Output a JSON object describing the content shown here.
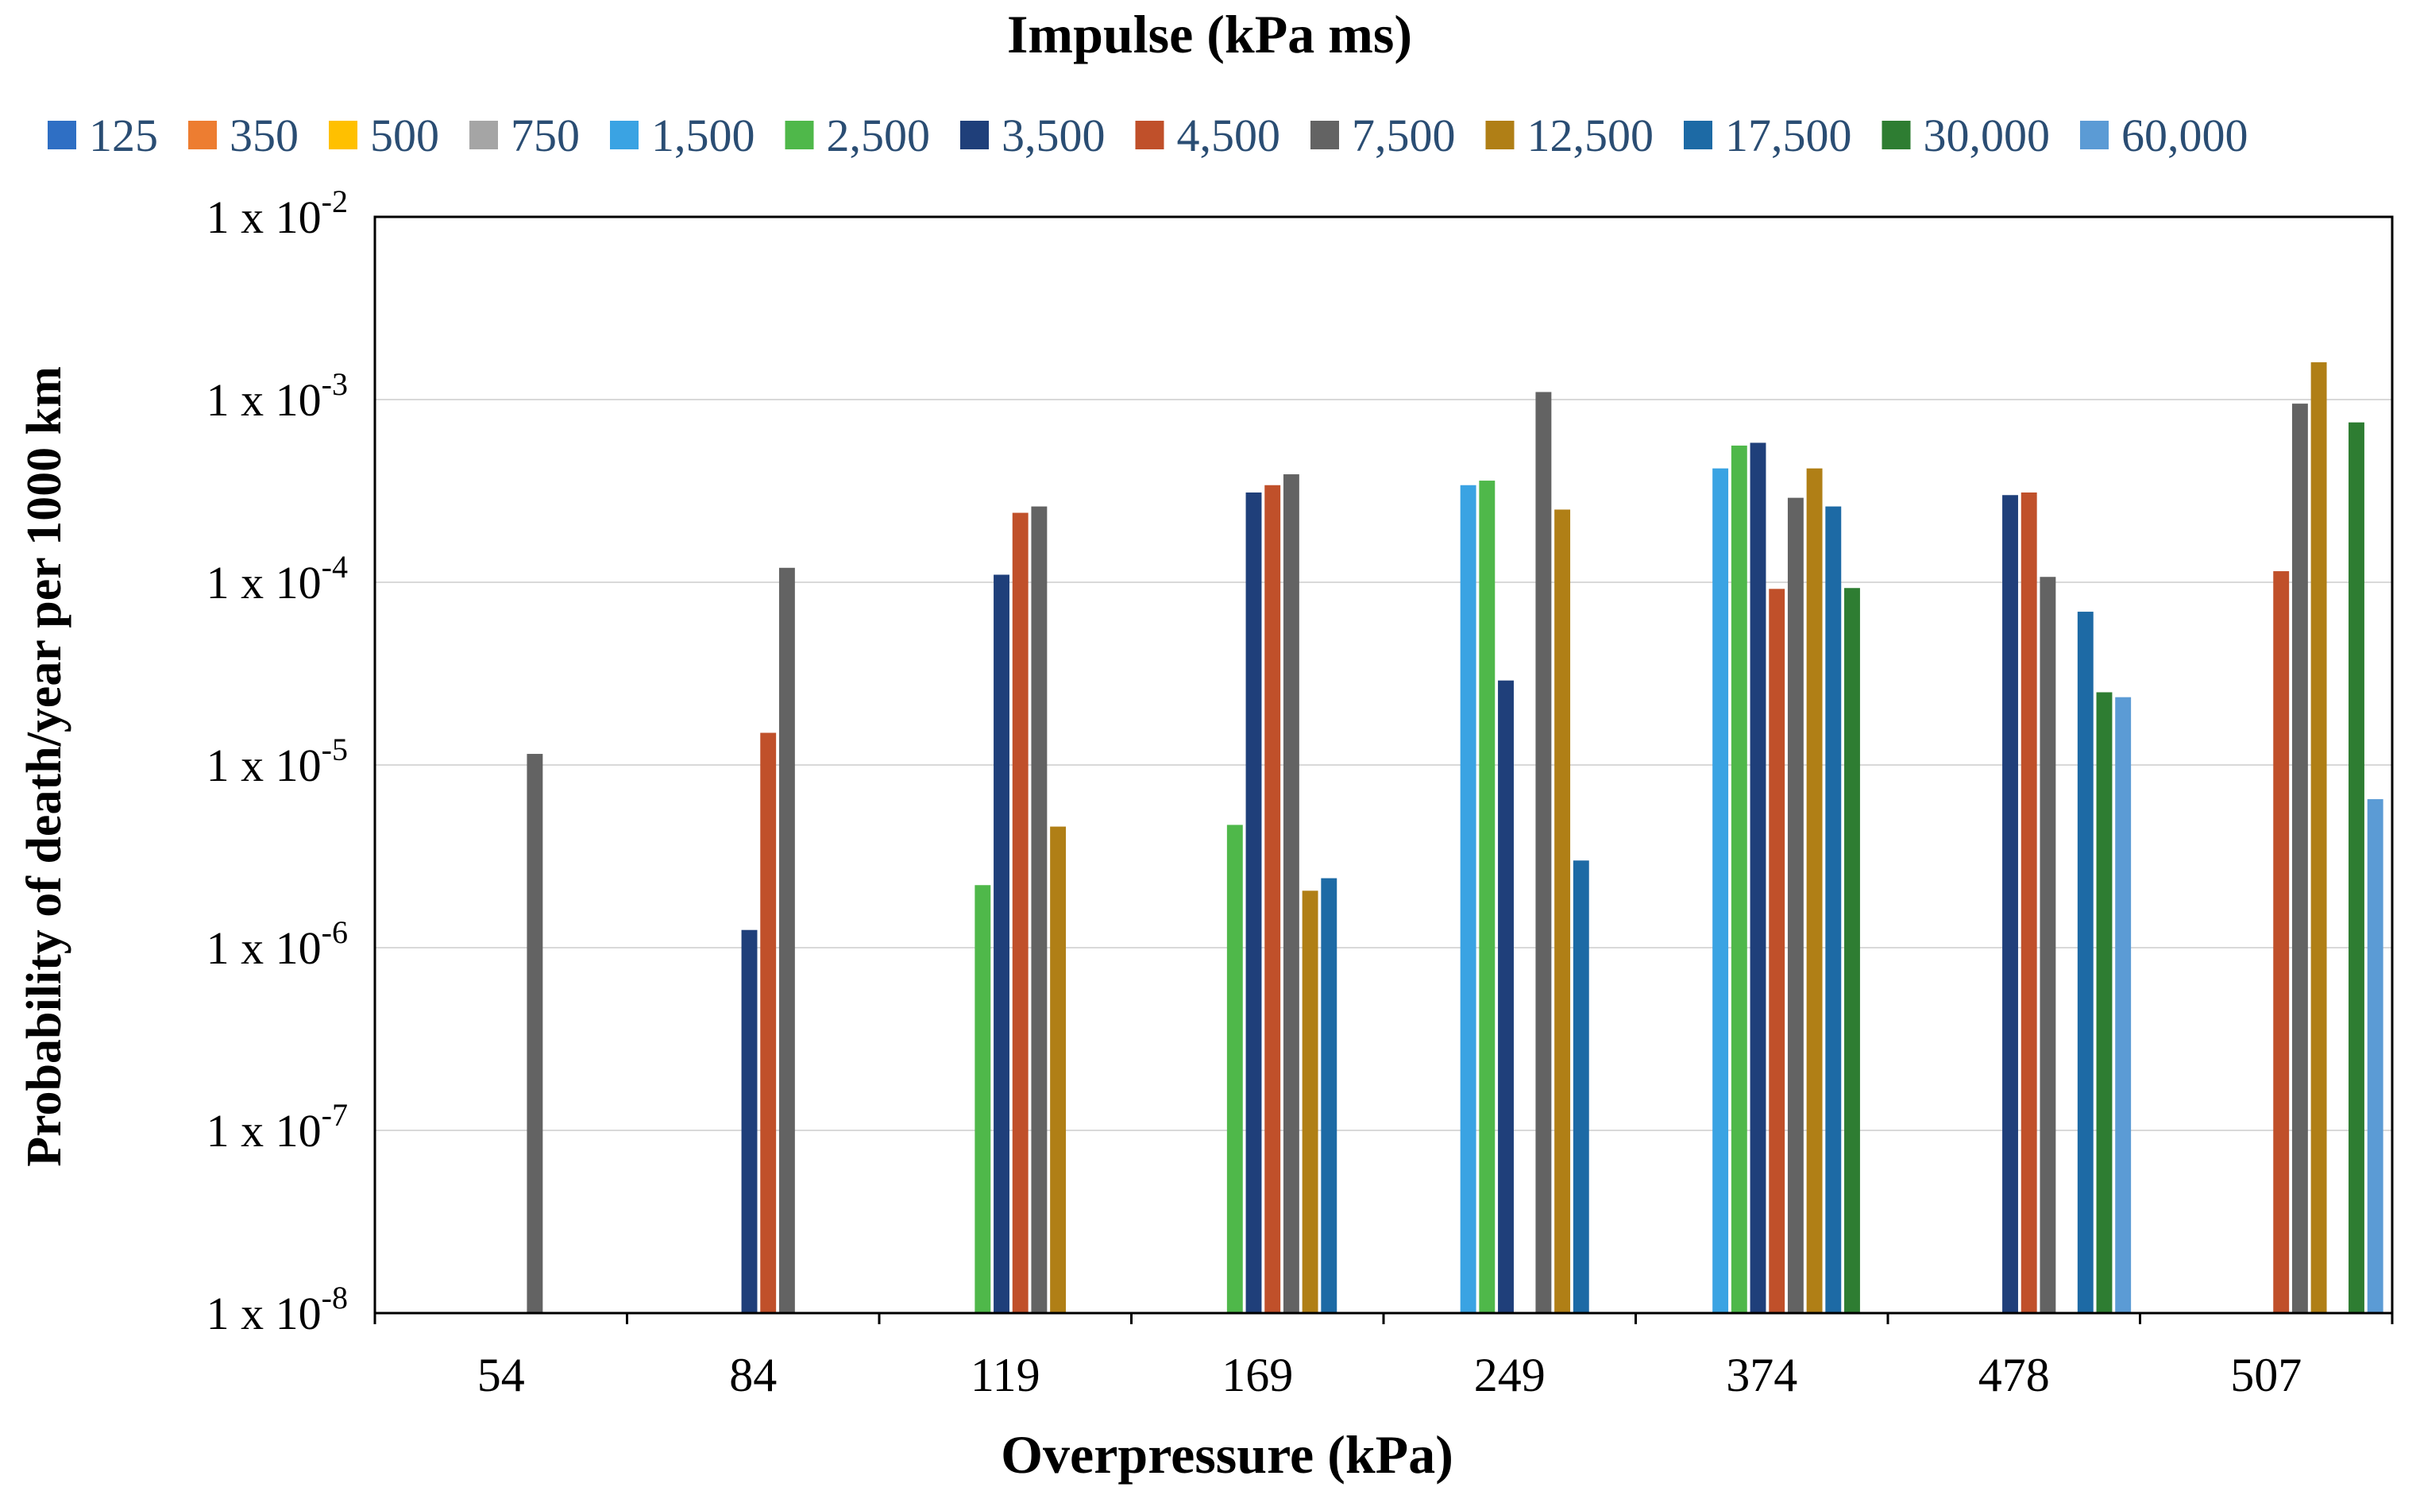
{
  "chart_data": {
    "type": "bar",
    "title": "Impulse (kPa ms)",
    "xlabel": "Overpressure (kPa)",
    "ylabel": "Probability of death/year per 1000 km",
    "yscale": "log",
    "ylim": [
      1e-08,
      0.01
    ],
    "y_ticks": [
      {
        "value": 1e-08,
        "base": "1 x 10",
        "exp": "-8"
      },
      {
        "value": 1e-07,
        "base": "1 x 10",
        "exp": "-7"
      },
      {
        "value": 1e-06,
        "base": "1 x 10",
        "exp": "-6"
      },
      {
        "value": 1e-05,
        "base": "1 x 10",
        "exp": "-5"
      },
      {
        "value": 0.0001,
        "base": "1 x 10",
        "exp": "-4"
      },
      {
        "value": 0.001,
        "base": "1 x 10",
        "exp": "-3"
      },
      {
        "value": 0.01,
        "base": "1 x 10",
        "exp": "-2"
      }
    ],
    "grid": true,
    "legend_position": "top",
    "categories": [
      "54",
      "84",
      "119",
      "169",
      "249",
      "374",
      "478",
      "507"
    ],
    "series": [
      {
        "name": "125",
        "color": "#2f6fc4",
        "values": [
          null,
          null,
          null,
          null,
          null,
          null,
          null,
          null
        ]
      },
      {
        "name": "350",
        "color": "#ed7d31",
        "values": [
          null,
          null,
          null,
          null,
          null,
          null,
          null,
          null
        ]
      },
      {
        "name": "500",
        "color": "#ffc000",
        "values": [
          null,
          null,
          null,
          null,
          null,
          null,
          null,
          null
        ]
      },
      {
        "name": "750",
        "color": "#a5a5a5",
        "values": [
          null,
          null,
          null,
          null,
          null,
          null,
          null,
          null
        ]
      },
      {
        "name": "1,500",
        "color": "#3aa3e3",
        "values": [
          null,
          null,
          null,
          null,
          0.00034,
          0.00042,
          null,
          null
        ]
      },
      {
        "name": "2,500",
        "color": "#4fb84a",
        "values": [
          null,
          null,
          2.2e-06,
          4.7e-06,
          0.00036,
          0.00056,
          null,
          null
        ]
      },
      {
        "name": "3,500",
        "color": "#1f3f7a",
        "values": [
          null,
          1.25e-06,
          0.00011,
          0.00031,
          2.9e-05,
          0.00058,
          0.0003,
          null
        ]
      },
      {
        "name": "4,500",
        "color": "#c0502a",
        "values": [
          null,
          1.5e-05,
          0.00024,
          0.00034,
          null,
          9.2e-05,
          0.00031,
          0.000115
        ]
      },
      {
        "name": "7,500",
        "color": "#636363",
        "values": [
          1.15e-05,
          0.00012,
          0.00026,
          0.00039,
          0.0011,
          0.00029,
          0.000107,
          0.00095
        ]
      },
      {
        "name": "12,500",
        "color": "#b07f16",
        "values": [
          null,
          null,
          4.6e-06,
          2.05e-06,
          0.00025,
          0.00042,
          null,
          0.0016
        ]
      },
      {
        "name": "17,500",
        "color": "#1d6aa5",
        "values": [
          null,
          null,
          null,
          2.4e-06,
          3e-06,
          0.00026,
          6.9e-05,
          null
        ]
      },
      {
        "name": "30,000",
        "color": "#2e7d32",
        "values": [
          null,
          null,
          null,
          null,
          null,
          9.3e-05,
          2.5e-05,
          0.00075
        ]
      },
      {
        "name": "60,000",
        "color": "#5b9bd5",
        "values": [
          null,
          null,
          null,
          null,
          null,
          null,
          2.35e-05,
          6.5e-06
        ]
      }
    ]
  }
}
